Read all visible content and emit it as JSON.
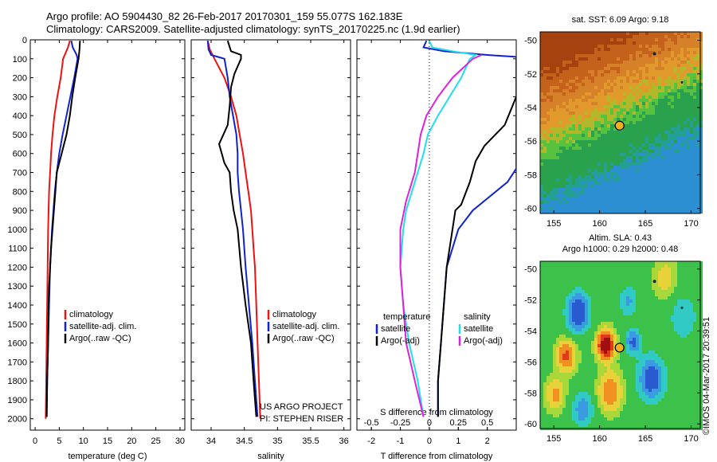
{
  "header": {
    "line1": "Argo profile: AO 5904430_82 26-Feb-2017 20170301_159 55.077S 162.183E",
    "line2": "Climatology: CARS2009. Satellite-adjusted climatology: synTS_20170225.nc (1.9d earlier)"
  },
  "colors": {
    "climatology": "#ee1111",
    "satellite": "#1122cc",
    "argo": "#000000",
    "satellite_s": "#22ddee",
    "argo_s": "#dd22dd"
  },
  "chart_data": [
    {
      "type": "line",
      "xlabel": "temperature (deg C)",
      "xlim": [
        -1,
        31
      ],
      "ylim": [
        2060,
        0
      ],
      "xticks": [
        0,
        5,
        10,
        15,
        20,
        25,
        30
      ],
      "yticks": [
        0,
        100,
        200,
        300,
        400,
        500,
        600,
        700,
        800,
        900,
        1000,
        1100,
        1200,
        1300,
        1400,
        1500,
        1600,
        1700,
        1800,
        1900,
        2000
      ],
      "legend": [
        "climatology",
        "satellite-adj. clim.",
        "Argo(..raw -QC)"
      ],
      "series": [
        {
          "name": "climatology",
          "color": "#ee1111",
          "points": [
            [
              7.2,
              5
            ],
            [
              6.8,
              40
            ],
            [
              5.8,
              100
            ],
            [
              5.3,
              200
            ],
            [
              4.6,
              300
            ],
            [
              4.0,
              400
            ],
            [
              3.6,
              500
            ],
            [
              3.3,
              600
            ],
            [
              3.1,
              700
            ],
            [
              2.9,
              800
            ],
            [
              2.8,
              900
            ],
            [
              2.7,
              1000
            ],
            [
              2.6,
              1200
            ],
            [
              2.5,
              1400
            ],
            [
              2.4,
              1600
            ],
            [
              2.3,
              1800
            ],
            [
              2.2,
              2000
            ]
          ]
        },
        {
          "name": "satellite-adj. clim.",
          "color": "#1122cc",
          "points": [
            [
              7.5,
              5
            ],
            [
              7.8,
              40
            ],
            [
              8.6,
              80
            ],
            [
              8.8,
              100
            ],
            [
              8.1,
              200
            ],
            [
              7.3,
              300
            ],
            [
              6.5,
              400
            ],
            [
              5.7,
              500
            ],
            [
              5.0,
              600
            ],
            [
              4.5,
              700
            ],
            [
              4.1,
              800
            ],
            [
              3.8,
              900
            ],
            [
              3.5,
              1000
            ],
            [
              3.3,
              1100
            ],
            [
              3.1,
              1200
            ],
            [
              2.9,
              1400
            ],
            [
              2.7,
              1600
            ],
            [
              2.5,
              1800
            ],
            [
              2.4,
              1990
            ]
          ]
        },
        {
          "name": "Argo(..raw -QC)",
          "color": "#000000",
          "points": [
            [
              9.3,
              5
            ],
            [
              9.2,
              50
            ],
            [
              9.0,
              100
            ],
            [
              8.3,
              200
            ],
            [
              7.7,
              300
            ],
            [
              7.2,
              400
            ],
            [
              6.5,
              500
            ],
            [
              5.5,
              600
            ],
            [
              4.5,
              700
            ],
            [
              4.2,
              800
            ],
            [
              3.9,
              900
            ],
            [
              3.6,
              1000
            ],
            [
              3.3,
              1100
            ],
            [
              3.1,
              1200
            ],
            [
              2.9,
              1300
            ],
            [
              2.8,
              1400
            ],
            [
              2.7,
              1600
            ],
            [
              2.5,
              1800
            ],
            [
              2.4,
              1990
            ]
          ]
        }
      ]
    },
    {
      "type": "line",
      "xlabel": "salinity",
      "xlim": [
        33.7,
        36.1
      ],
      "ylim": [
        2060,
        0
      ],
      "xticks": [
        34,
        34.5,
        35,
        35.5,
        36
      ],
      "legend": [
        "climatology",
        "satellite-adj. clim.",
        "Argo(..raw -QC)"
      ],
      "footer": [
        "US ARGO PROJECT",
        "PI: STEPHEN RISER"
      ],
      "series": [
        {
          "name": "climatology",
          "color": "#ee1111",
          "points": [
            [
              33.95,
              5
            ],
            [
              33.98,
              50
            ],
            [
              34.05,
              100
            ],
            [
              34.2,
              200
            ],
            [
              34.3,
              300
            ],
            [
              34.38,
              400
            ],
            [
              34.43,
              500
            ],
            [
              34.48,
              600
            ],
            [
              34.52,
              700
            ],
            [
              34.56,
              800
            ],
            [
              34.6,
              900
            ],
            [
              34.62,
              1000
            ],
            [
              34.64,
              1100
            ],
            [
              34.66,
              1200
            ],
            [
              34.68,
              1400
            ],
            [
              34.7,
              1600
            ],
            [
              34.72,
              1800
            ],
            [
              34.74,
              2000
            ]
          ]
        },
        {
          "name": "satellite-adj. clim.",
          "color": "#1122cc",
          "points": [
            [
              33.95,
              5
            ],
            [
              33.96,
              50
            ],
            [
              34.0,
              80
            ],
            [
              34.2,
              100
            ],
            [
              34.25,
              200
            ],
            [
              34.28,
              300
            ],
            [
              34.33,
              400
            ],
            [
              34.38,
              500
            ],
            [
              34.4,
              600
            ],
            [
              34.4,
              700
            ],
            [
              34.42,
              800
            ],
            [
              34.45,
              900
            ],
            [
              34.48,
              1000
            ],
            [
              34.52,
              1200
            ],
            [
              34.57,
              1400
            ],
            [
              34.62,
              1600
            ],
            [
              34.66,
              1800
            ],
            [
              34.7,
              1990
            ]
          ]
        },
        {
          "name": "Argo(..raw -QC)",
          "color": "#000000",
          "points": [
            [
              34.25,
              5
            ],
            [
              34.3,
              60
            ],
            [
              34.45,
              80
            ],
            [
              34.45,
              100
            ],
            [
              34.35,
              180
            ],
            [
              34.3,
              250
            ],
            [
              34.28,
              350
            ],
            [
              34.25,
              450
            ],
            [
              34.12,
              550
            ],
            [
              34.2,
              650
            ],
            [
              34.28,
              700
            ],
            [
              34.3,
              800
            ],
            [
              34.34,
              900
            ],
            [
              34.4,
              1000
            ],
            [
              34.45,
              1200
            ],
            [
              34.52,
              1400
            ],
            [
              34.6,
              1600
            ],
            [
              34.64,
              1800
            ],
            [
              34.68,
              1990
            ]
          ]
        }
      ]
    },
    {
      "type": "line",
      "xlabel": "T difference from climatology",
      "x2label": "S difference from climatology",
      "xlim": [
        -2.5,
        3
      ],
      "ylim": [
        2060,
        0
      ],
      "xticks": [
        -2,
        -1,
        0,
        1,
        2
      ],
      "x2ticks": [
        "-0.5",
        "-0.25",
        "0",
        "0.25",
        "0.5"
      ],
      "legend_titles": [
        "temperature",
        "salinity"
      ],
      "legend_left": [
        "satellite",
        "Argo(-adj)"
      ],
      "legend_right": [
        "satellite",
        "Argo(-adj)"
      ],
      "series": [
        {
          "name": "satellite",
          "group": "temperature",
          "color": "#1122cc",
          "points": [
            [
              -0.1,
              5
            ],
            [
              -0.2,
              40
            ],
            [
              0.5,
              60
            ],
            [
              2.0,
              80
            ],
            [
              3.0,
              90
            ],
            [
              3.0,
              200
            ],
            [
              3.0,
              300
            ],
            [
              3.0,
              500
            ],
            [
              3.0,
              600
            ],
            [
              3.0,
              680
            ],
            [
              2.7,
              750
            ],
            [
              1.5,
              900
            ],
            [
              1.0,
              1000
            ],
            [
              0.8,
              1100
            ],
            [
              0.6,
              1200
            ],
            [
              0.5,
              1400
            ],
            [
              0.4,
              1600
            ],
            [
              0.3,
              1800
            ],
            [
              0.3,
              1990
            ]
          ]
        },
        {
          "name": "Argo(-adj)",
          "group": "temperature",
          "color": "#000000",
          "points": [
            [
              3.0,
              300
            ],
            [
              2.6,
              450
            ],
            [
              1.9,
              560
            ],
            [
              1.6,
              640
            ],
            [
              1.4,
              750
            ],
            [
              1.1,
              870
            ],
            [
              0.9,
              900
            ],
            [
              0.8,
              1000
            ],
            [
              0.6,
              1200
            ],
            [
              0.5,
              1400
            ],
            [
              0.4,
              1600
            ],
            [
              0.3,
              1800
            ],
            [
              0.3,
              1990
            ]
          ]
        },
        {
          "name": "satellite",
          "group": "salinity",
          "color": "#22ddee",
          "points": [
            [
              0.0,
              5
            ],
            [
              0.1,
              40
            ],
            [
              0.8,
              60
            ],
            [
              1.6,
              80
            ],
            [
              1.4,
              100
            ],
            [
              1.1,
              200
            ],
            [
              0.7,
              300
            ],
            [
              0.3,
              400
            ],
            [
              -0.05,
              500
            ],
            [
              -0.2,
              600
            ],
            [
              -0.4,
              700
            ],
            [
              -0.6,
              800
            ],
            [
              -0.8,
              900
            ],
            [
              -0.9,
              1000
            ],
            [
              -1.0,
              1200
            ],
            [
              -0.9,
              1400
            ],
            [
              -0.7,
              1600
            ],
            [
              -0.4,
              1800
            ],
            [
              -0.2,
              1990
            ]
          ]
        },
        {
          "name": "Argo(-adj)",
          "group": "salinity",
          "color": "#dd22dd",
          "points": [
            [
              1.8,
              80
            ],
            [
              1.5,
              100
            ],
            [
              0.8,
              200
            ],
            [
              0.3,
              300
            ],
            [
              -0.1,
              400
            ],
            [
              -0.3,
              500
            ],
            [
              -0.4,
              600
            ],
            [
              -0.5,
              700
            ],
            [
              -0.8,
              850
            ],
            [
              -1.0,
              1000
            ],
            [
              -1.0,
              1200
            ],
            [
              -0.9,
              1400
            ],
            [
              -0.8,
              1600
            ],
            [
              -0.5,
              1800
            ],
            [
              -0.2,
              1990
            ]
          ]
        }
      ]
    },
    {
      "type": "heatmap",
      "title": "sat. SST: 6.09  Argo: 9.18",
      "xlim": [
        153.5,
        171
      ],
      "ylim": [
        -60.3,
        -49.5
      ],
      "xticks": [
        155,
        160,
        165,
        170
      ],
      "yticks": [
        -50,
        -52,
        -54,
        -56,
        -58,
        -60
      ],
      "marker": {
        "lon": 162.183,
        "lat": -55.077
      }
    },
    {
      "type": "heatmap",
      "title": "Altim. SLA: 0.43",
      "subtitle": "Argo h1000: 0.29 h2000: 0.48",
      "xlim": [
        153.5,
        171
      ],
      "ylim": [
        -60.3,
        -49.5
      ],
      "xticks": [
        155,
        160,
        165,
        170
      ],
      "yticks": [
        -50,
        -52,
        -54,
        -56,
        -58,
        -60
      ],
      "marker": {
        "lon": 162.183,
        "lat": -55.077
      }
    }
  ],
  "footer_text": "©IMOS 04-Mar-2017 20:39:51"
}
